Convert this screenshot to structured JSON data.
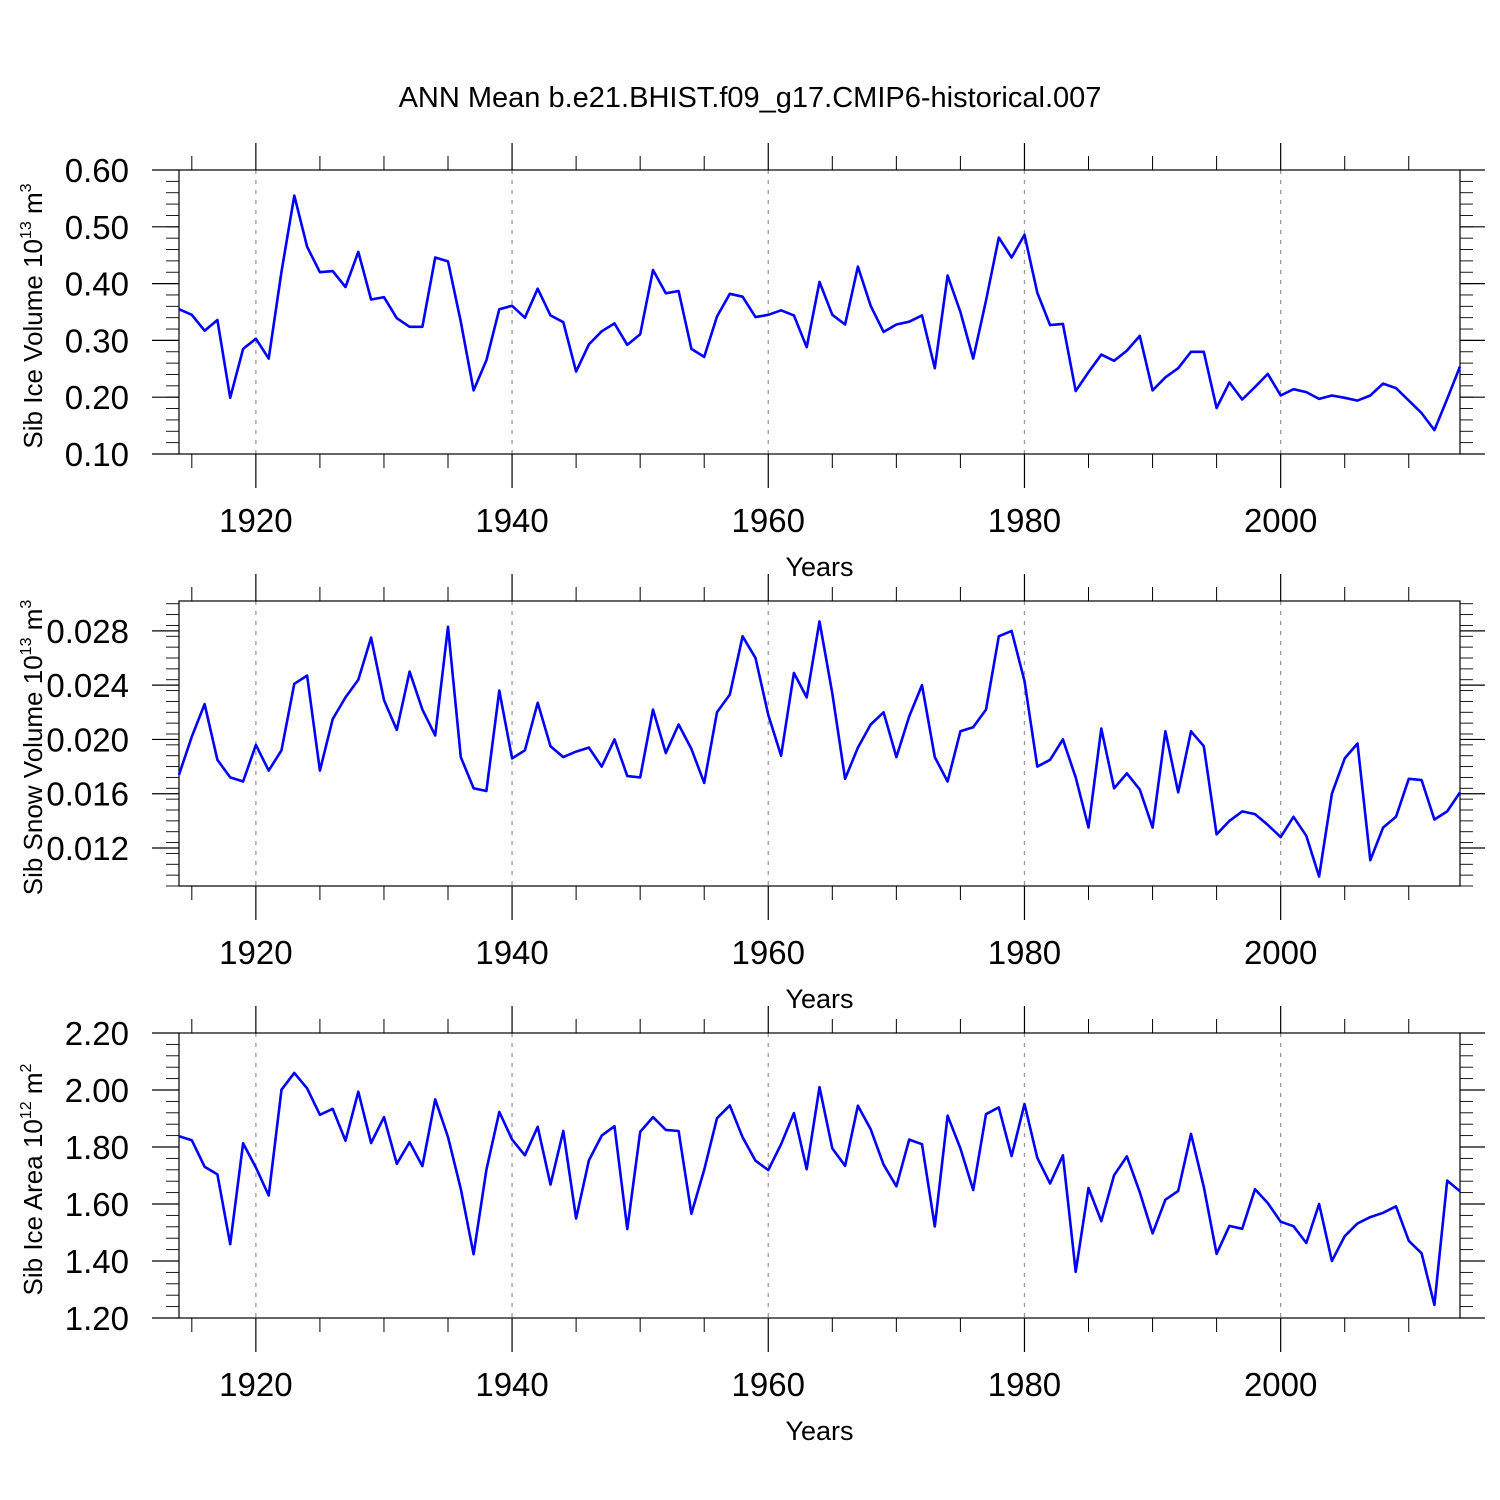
{
  "figure_title": "ANN Mean b.e21.BHIST.f09_g17.CMIP6-historical.007",
  "chart_data": [
    {
      "type": "line",
      "ylabel": {
        "base": "Sib Ice Volume 10",
        "exp1": "13",
        "mid": " m",
        "exp2": "3"
      },
      "xlabel": "Years",
      "xlim": [
        1914,
        2014
      ],
      "ylim": [
        0.1,
        0.6
      ],
      "yticks": [
        0.1,
        0.2,
        0.3,
        0.4,
        0.5,
        0.6
      ],
      "ytick_labels": [
        "0.10",
        "0.20",
        "0.30",
        "0.40",
        "0.50",
        "0.60"
      ],
      "yminor_step": 0.02,
      "xticks": [
        1920,
        1940,
        1960,
        1980,
        2000
      ],
      "xtick_labels": [
        "1920",
        "1940",
        "1960",
        "1980",
        "2000"
      ],
      "color": "#0000ff",
      "x_start": 1914,
      "values": [
        0.355,
        0.345,
        0.317,
        0.336,
        0.199,
        0.285,
        0.303,
        0.268,
        0.421,
        0.555,
        0.465,
        0.42,
        0.422,
        0.394,
        0.456,
        0.372,
        0.376,
        0.339,
        0.324,
        0.324,
        0.446,
        0.439,
        0.333,
        0.212,
        0.265,
        0.355,
        0.361,
        0.34,
        0.391,
        0.344,
        0.332,
        0.245,
        0.293,
        0.316,
        0.33,
        0.292,
        0.311,
        0.424,
        0.383,
        0.387,
        0.285,
        0.271,
        0.342,
        0.382,
        0.377,
        0.341,
        0.345,
        0.353,
        0.344,
        0.288,
        0.403,
        0.345,
        0.328,
        0.43,
        0.361,
        0.315,
        0.328,
        0.333,
        0.344,
        0.251,
        0.414,
        0.35,
        0.268,
        0.37,
        0.481,
        0.446,
        0.486,
        0.384,
        0.327,
        0.329,
        0.211,
        0.244,
        0.275,
        0.264,
        0.282,
        0.308,
        0.212,
        0.235,
        0.251,
        0.28,
        0.28,
        0.181,
        0.226,
        0.196,
        0.218,
        0.241,
        0.203,
        0.214,
        0.209,
        0.197,
        0.203,
        0.199,
        0.194,
        0.203,
        0.224,
        0.216,
        0.194,
        0.172,
        0.142,
        0.197,
        0.254
      ]
    },
    {
      "type": "line",
      "ylabel": {
        "base": "Sib Snow Volume 10",
        "exp1": "13",
        "mid": " m",
        "exp2": "3"
      },
      "xlabel": "Years",
      "xlim": [
        1914,
        2014
      ],
      "ylim": [
        0.0092,
        0.0302
      ],
      "yticks": [
        0.012,
        0.016,
        0.02,
        0.024,
        0.028
      ],
      "ytick_labels": [
        "0.012",
        "0.016",
        "0.020",
        "0.024",
        "0.028"
      ],
      "yminor_step": 0.0008,
      "xticks": [
        1920,
        1940,
        1960,
        1980,
        2000
      ],
      "xtick_labels": [
        "1920",
        "1940",
        "1960",
        "1980",
        "2000"
      ],
      "color": "#0000ff",
      "x_start": 1914,
      "values": [
        0.0174,
        0.0202,
        0.0226,
        0.0185,
        0.0172,
        0.0169,
        0.0196,
        0.0177,
        0.0192,
        0.0241,
        0.0247,
        0.0177,
        0.0215,
        0.0231,
        0.0244,
        0.0275,
        0.0229,
        0.0207,
        0.025,
        0.0222,
        0.0203,
        0.0283,
        0.0187,
        0.0164,
        0.0162,
        0.0236,
        0.0186,
        0.0192,
        0.0227,
        0.0195,
        0.0187,
        0.0191,
        0.0194,
        0.018,
        0.02,
        0.0173,
        0.0172,
        0.0222,
        0.019,
        0.0211,
        0.0193,
        0.0168,
        0.022,
        0.0233,
        0.0276,
        0.026,
        0.0218,
        0.0188,
        0.0249,
        0.0231,
        0.0287,
        0.0234,
        0.0171,
        0.0194,
        0.0211,
        0.022,
        0.0187,
        0.0217,
        0.024,
        0.0187,
        0.0169,
        0.0206,
        0.0209,
        0.0222,
        0.0276,
        0.028,
        0.0243,
        0.018,
        0.0185,
        0.02,
        0.0172,
        0.0135,
        0.0208,
        0.0164,
        0.0175,
        0.0163,
        0.0135,
        0.0206,
        0.0161,
        0.0206,
        0.0195,
        0.013,
        0.014,
        0.0147,
        0.0145,
        0.0137,
        0.0128,
        0.0143,
        0.0129,
        0.0099,
        0.016,
        0.0186,
        0.0197,
        0.0111,
        0.0135,
        0.0143,
        0.0171,
        0.017,
        0.0141,
        0.0147,
        0.0161
      ]
    },
    {
      "type": "line",
      "ylabel": {
        "base": "Sib Ice Area 10",
        "exp1": "12",
        "mid": " m",
        "exp2": "2"
      },
      "xlabel": "Years",
      "xlim": [
        1914,
        2014
      ],
      "ylim": [
        1.2,
        2.2
      ],
      "yticks": [
        1.2,
        1.4,
        1.6,
        1.8,
        2.0,
        2.2
      ],
      "ytick_labels": [
        "1.20",
        "1.40",
        "1.60",
        "1.80",
        "2.00",
        "2.20"
      ],
      "yminor_step": 0.04,
      "xticks": [
        1920,
        1940,
        1960,
        1980,
        2000
      ],
      "xtick_labels": [
        "1920",
        "1940",
        "1960",
        "1980",
        "2000"
      ],
      "color": "#0000ff",
      "x_start": 1914,
      "values": [
        1.838,
        1.824,
        1.731,
        1.704,
        1.459,
        1.813,
        1.728,
        1.63,
        2.001,
        2.06,
        2.006,
        1.913,
        1.934,
        1.822,
        1.994,
        1.814,
        1.905,
        1.741,
        1.817,
        1.733,
        1.967,
        1.835,
        1.653,
        1.424,
        1.72,
        1.923,
        1.826,
        1.771,
        1.871,
        1.668,
        1.856,
        1.549,
        1.753,
        1.84,
        1.873,
        1.512,
        1.853,
        1.905,
        1.86,
        1.856,
        1.566,
        1.72,
        1.901,
        1.946,
        1.834,
        1.752,
        1.719,
        1.81,
        1.919,
        1.722,
        2.01,
        1.795,
        1.734,
        1.945,
        1.862,
        1.738,
        1.662,
        1.826,
        1.81,
        1.521,
        1.91,
        1.795,
        1.649,
        1.915,
        1.939,
        1.768,
        1.951,
        1.762,
        1.672,
        1.771,
        1.362,
        1.656,
        1.54,
        1.701,
        1.767,
        1.641,
        1.497,
        1.615,
        1.646,
        1.846,
        1.66,
        1.425,
        1.523,
        1.513,
        1.652,
        1.603,
        1.538,
        1.522,
        1.463,
        1.6,
        1.4,
        1.487,
        1.532,
        1.554,
        1.569,
        1.592,
        1.471,
        1.427,
        1.246,
        1.682,
        1.645
      ]
    }
  ]
}
